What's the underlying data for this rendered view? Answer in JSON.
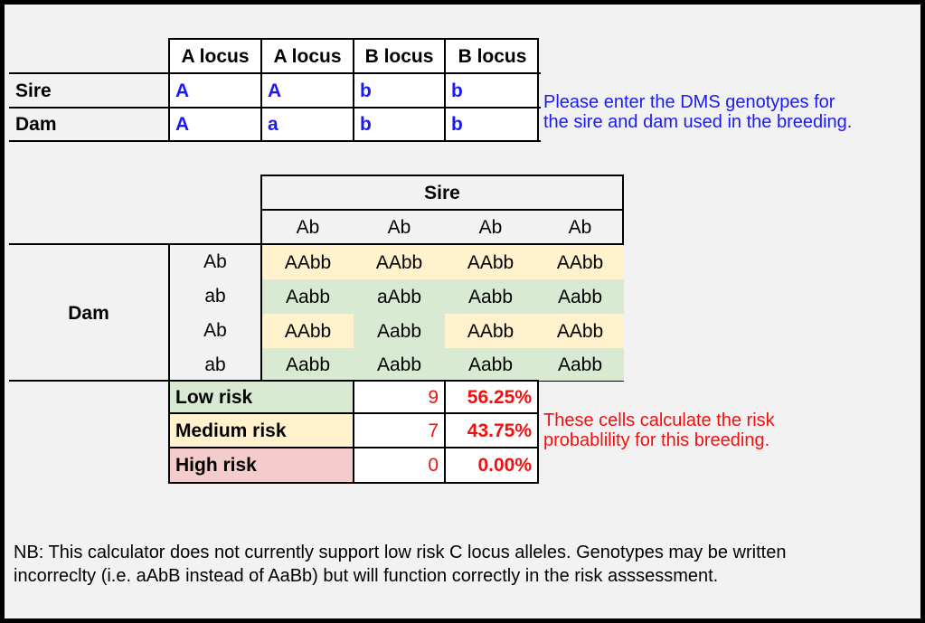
{
  "genotype_table": {
    "headers": [
      "A locus",
      "A locus",
      "B locus",
      "B locus"
    ],
    "rows": [
      {
        "label": "Sire",
        "alleles": [
          "A",
          "A",
          "b",
          "b"
        ]
      },
      {
        "label": "Dam",
        "alleles": [
          "A",
          "a",
          "b",
          "b"
        ]
      }
    ]
  },
  "instruction_note": {
    "line1": "Please enter the DMS genotypes for",
    "line2": "the sire and dam used in the breeding."
  },
  "punnett": {
    "sire_label": "Sire",
    "dam_label": "Dam",
    "sire_gametes": [
      "Ab",
      "Ab",
      "Ab",
      "Ab"
    ],
    "dam_gametes": [
      "Ab",
      "ab",
      "Ab",
      "ab"
    ],
    "grid": [
      [
        "AAbb",
        "AAbb",
        "AAbb",
        "AAbb"
      ],
      [
        "Aabb",
        "aAbb",
        "Aabb",
        "Aabb"
      ],
      [
        "AAbb",
        "Aabb",
        "AAbb",
        "AAbb"
      ],
      [
        "Aabb",
        "Aabb",
        "Aabb",
        "Aabb"
      ]
    ],
    "grid_colors": [
      [
        "yellow",
        "yellow",
        "yellow",
        "yellow"
      ],
      [
        "green",
        "green",
        "green",
        "green"
      ],
      [
        "yellow",
        "green",
        "yellow",
        "yellow"
      ],
      [
        "green",
        "green",
        "green",
        "green"
      ]
    ]
  },
  "risk_summary": [
    {
      "label": "Low risk",
      "count": "9",
      "percent": "56.25%",
      "color": "#d9ead3"
    },
    {
      "label": "Medium risk",
      "count": "7",
      "percent": "43.75%",
      "color": "#fff2cc"
    },
    {
      "label": "High risk",
      "count": "0",
      "percent": "0.00%",
      "color": "#f4cccc"
    }
  ],
  "risk_note": {
    "line1": "These cells calculate the risk",
    "line2": "probablility for this breeding."
  },
  "nb_note": {
    "line1": "NB: This calculator does not currently support low risk C locus alleles. Genotypes may be written",
    "line2": "incorreclty (i.e. aAbB instead of AaBb) but will function correctly in the risk asssessment."
  }
}
